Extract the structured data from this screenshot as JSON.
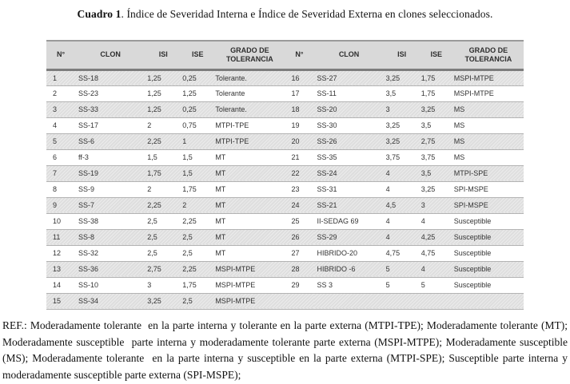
{
  "title": {
    "label": "Cuadro 1",
    "text": ". Índice de Severidad Interna e Índice de Severidad Externa en clones seleccionados."
  },
  "table": {
    "headers": [
      "N°",
      "CLON",
      "ISI",
      "ISE",
      "GRADO DE TOLERANCIA",
      "N°",
      "CLON",
      "ISI",
      "ISE",
      "GRADO DE TOLERANCIA"
    ],
    "rows": [
      [
        "1",
        "SS-18",
        "1,25",
        "0,25",
        "Tolerante.",
        "16",
        "SS-27",
        "3,25",
        "1,75",
        "MSPI-MTPE"
      ],
      [
        "2",
        "SS-23",
        "1,25",
        "1,25",
        "Tolerante",
        "17",
        "SS-11",
        "3,5",
        "1,75",
        "MSPI-MTPE"
      ],
      [
        "3",
        "SS-33",
        "1,25",
        "0,25",
        "Tolerante.",
        "18",
        "SS-20",
        "3",
        "3,25",
        "MS"
      ],
      [
        "4",
        "SS-17",
        "2",
        "0,75",
        "MTPI-TPE",
        "19",
        "SS-30",
        "3,25",
        "3,5",
        "MS"
      ],
      [
        "5",
        "SS-6",
        "2,25",
        "1",
        "MTPI-TPE",
        "20",
        "SS-26",
        "3,25",
        "2,75",
        "MS"
      ],
      [
        "6",
        "ff-3",
        "1,5",
        "1,5",
        "MT",
        "21",
        "SS-35",
        "3,75",
        "3,75",
        "MS"
      ],
      [
        "7",
        "SS-19",
        "1,75",
        "1,5",
        "MT",
        "22",
        "SS-24",
        "4",
        "3,5",
        "MTPI-SPE"
      ],
      [
        "8",
        "SS-9",
        "2",
        "1,75",
        "MT",
        "23",
        "SS-31",
        "4",
        "3,25",
        "SPI-MSPE"
      ],
      [
        "9",
        "SS-7",
        "2,25",
        "2",
        "MT",
        "24",
        "SS-21",
        "4,5",
        "3",
        "SPI-MSPE"
      ],
      [
        "10",
        "SS-38",
        "2,5",
        "2,25",
        "MT",
        "25",
        "II-SEDAG 69",
        "4",
        "4",
        "Susceptible"
      ],
      [
        "11",
        "SS-8",
        "2,5",
        "2,5",
        "MT",
        "26",
        "SS-29",
        "4",
        "4,25",
        "Susceptible"
      ],
      [
        "12",
        "SS-32",
        "2,5",
        "2,5",
        "MT",
        "27",
        "HIBRIDO-20",
        "4,75",
        "4,75",
        "Susceptible"
      ],
      [
        "13",
        "SS-36",
        "2,75",
        "2,25",
        "MSPI-MTPE",
        "28",
        "HIBRIDO -6",
        "5",
        "4",
        "Susceptible"
      ],
      [
        "14",
        "SS-10",
        "3",
        "1,75",
        "MSPI-MTPE",
        "29",
        "SS 3",
        "5",
        "5",
        "Susceptible"
      ],
      [
        "15",
        "SS-34",
        "3,25",
        "2,5",
        "MSPI-MTPE",
        "",
        "",
        "",
        "",
        ""
      ]
    ]
  },
  "footnote": "REF.: Moderadamente tolerante  en la parte interna y tolerante en la parte externa (MTPI-TPE); Moderadamente tolerante (MT); Moderadamente susceptible  parte interna y moderadamente tolerante parte externa (MSPI-MTPE); Moderadamente susceptible (MS); Moderadamente tolerante  en la parte interna y susceptible en la parte externa (MTPI-SPE); Susceptible parte interna y  moderadamente susceptible parte externa (SPI-MSPE);"
}
